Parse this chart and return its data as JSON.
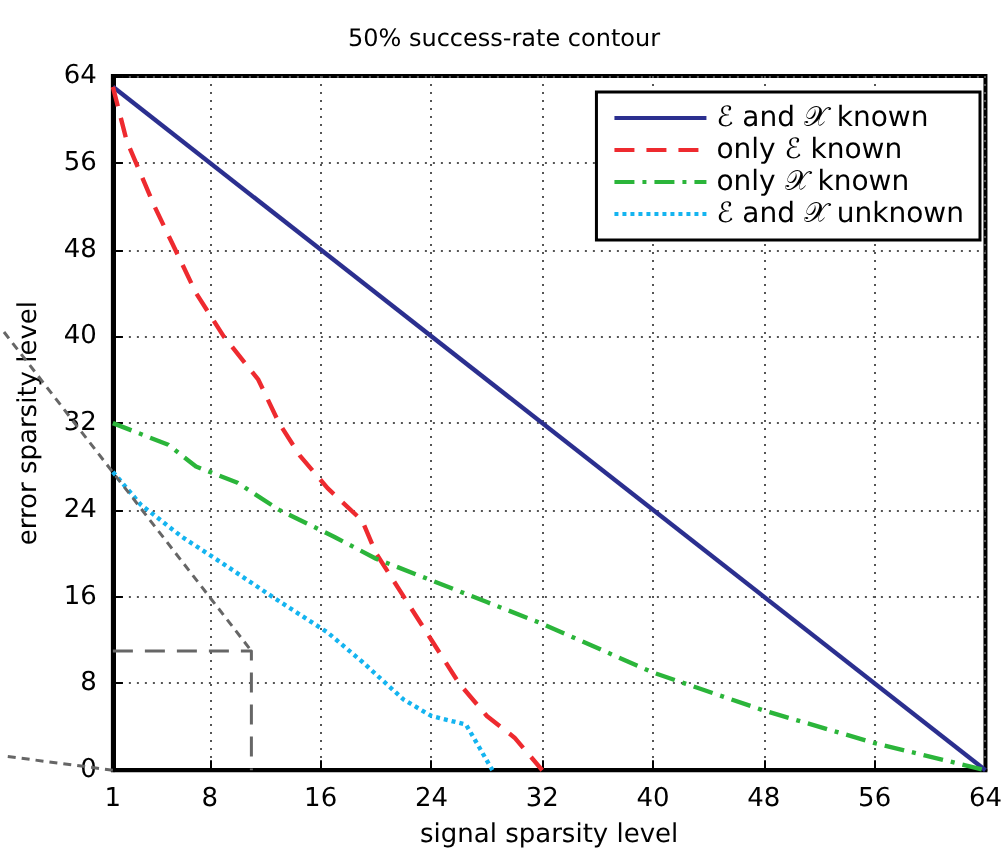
{
  "chart_data": {
    "type": "line",
    "title": "50% success-rate contour",
    "xlabel": "signal sparsity level",
    "ylabel": "error sparsity level",
    "xlim": [
      1,
      64
    ],
    "xticks": [
      1,
      8,
      16,
      24,
      32,
      40,
      48,
      56,
      64
    ],
    "ylim": [
      0,
      64
    ],
    "yticks": [
      0,
      8,
      16,
      24,
      32,
      40,
      48,
      56,
      64
    ],
    "grid": true,
    "legend": "top right",
    "marker": "none",
    "series": [
      {
        "name": "ℰ and 𝒳 known",
        "color": "#2b2f8f",
        "line_style": "solid",
        "x": [
          1,
          64
        ],
        "values": [
          63,
          0
        ]
      },
      {
        "name": "only ℰ known",
        "color": "#ee2a2f",
        "line_style": "dashed",
        "x": [
          1,
          2,
          4,
          5.5,
          7,
          9,
          11.5,
          13,
          14.5,
          16.5,
          19,
          20,
          22,
          24,
          26,
          28,
          30,
          32
        ],
        "values": [
          63,
          58,
          52,
          48,
          44,
          40,
          36,
          32,
          29,
          26,
          23,
          20,
          16,
          12,
          8,
          5,
          3,
          0
        ]
      },
      {
        "name": "only 𝒳 known",
        "color": "#2bb53a",
        "line_style": "dashdot",
        "x": [
          1,
          5,
          7,
          10,
          13,
          17,
          20,
          24,
          28,
          32,
          40,
          48,
          56,
          64
        ],
        "values": [
          32,
          30,
          28,
          26.5,
          24,
          21.5,
          19.5,
          17.5,
          15.5,
          13.5,
          9,
          5.5,
          2.5,
          0
        ]
      },
      {
        "name": "ℰ and 𝒳 unknown",
        "color": "#14b4f0",
        "line_style": "dotted",
        "x": [
          1,
          3,
          6,
          9,
          12.5,
          16.5,
          19,
          22,
          24,
          26.5,
          27.5,
          28.4
        ],
        "values": [
          27.5,
          24.5,
          21.5,
          19,
          16,
          12.7,
          10,
          6.5,
          5,
          4.2,
          2,
          0
        ]
      },
      {
        "color": "#666666",
        "line_style": "dashed",
        "x": [
          1,
          11,
          11
        ],
        "values": [
          11,
          11,
          0
        ]
      }
    ]
  }
}
